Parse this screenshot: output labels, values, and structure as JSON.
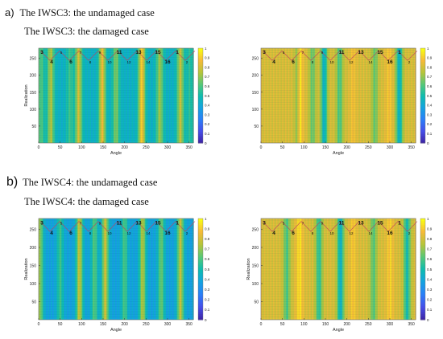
{
  "headings": {
    "a_tag": "a)",
    "a_line1": "The IWSC3: the undamaged case",
    "a_line2": "The IWSC3: the damaged case",
    "b_tag": "b)",
    "b_line1": "The IWSC4: the undamaged case",
    "b_line2": "The IWSC4: the damaged case"
  },
  "chart_data": [
    {
      "type": "heatmap",
      "panel": "a-left",
      "xlabel": "Angle",
      "ylabel": "Realization",
      "xlim": [
        0,
        360
      ],
      "ylim": [
        0,
        280
      ],
      "xticks": [
        0,
        50,
        100,
        150,
        200,
        250,
        300,
        350
      ],
      "yticks": [
        50,
        100,
        150,
        200,
        250
      ],
      "colorbar_ticks": [
        0,
        0.1,
        0.2,
        0.3,
        0.4,
        0.5,
        0.6,
        0.7,
        0.8,
        0.9,
        1
      ],
      "colormap": "parula",
      "base_value": 0.45,
      "bands": [
        {
          "angle": 5,
          "value": 0.62
        },
        {
          "angle": 28,
          "value": 0.75
        },
        {
          "angle": 73,
          "value": 0.58
        },
        {
          "angle": 93,
          "value": 0.8
        },
        {
          "angle": 148,
          "value": 0.85
        },
        {
          "angle": 180,
          "value": 0.68
        },
        {
          "angle": 240,
          "value": 0.9
        },
        {
          "angle": 282,
          "value": 0.72
        },
        {
          "angle": 330,
          "value": 0.78
        },
        {
          "angle": 352,
          "value": 0.55
        }
      ],
      "annotations_top": [
        "3",
        "5",
        "7",
        "9",
        "11",
        "13",
        "15",
        "1"
      ],
      "annotations_bottom": [
        "4",
        "6",
        "8",
        "10",
        "12",
        "14",
        "16",
        "2"
      ]
    },
    {
      "type": "heatmap",
      "panel": "a-right",
      "xlabel": "Angle",
      "ylabel": "",
      "xlim": [
        0,
        360
      ],
      "ylim": [
        0,
        280
      ],
      "xticks": [
        0,
        50,
        100,
        150,
        200,
        250,
        300,
        350
      ],
      "yticks": [
        50,
        100,
        150,
        200,
        250
      ],
      "colorbar_ticks": [
        0,
        0.1,
        0.2,
        0.3,
        0.4,
        0.5,
        0.6,
        0.7,
        0.8,
        0.9,
        1
      ],
      "colormap": "parula",
      "base_value": 0.82,
      "bands": [
        {
          "angle": 88,
          "value": 0.55
        },
        {
          "angle": 92,
          "value": 0.95
        },
        {
          "angle": 120,
          "value": 0.65
        },
        {
          "angle": 147,
          "value": 0.45
        },
        {
          "angle": 183,
          "value": 0.6
        },
        {
          "angle": 215,
          "value": 0.88
        },
        {
          "angle": 265,
          "value": 0.65
        },
        {
          "angle": 298,
          "value": 0.9
        },
        {
          "angle": 322,
          "value": 0.45
        }
      ],
      "annotations_top": [
        "3",
        "5",
        "7",
        "9",
        "11",
        "13",
        "15",
        "1"
      ],
      "annotations_bottom": [
        "4",
        "6",
        "8",
        "10",
        "12",
        "14",
        "16",
        "2"
      ]
    },
    {
      "type": "heatmap",
      "panel": "b-left",
      "xlabel": "Angle",
      "ylabel": "Realization",
      "xlim": [
        0,
        360
      ],
      "ylim": [
        0,
        280
      ],
      "xticks": [
        0,
        50,
        100,
        150,
        200,
        250,
        300,
        350
      ],
      "yticks": [
        50,
        100,
        150,
        200,
        250
      ],
      "colorbar_ticks": [
        0,
        0.1,
        0.2,
        0.3,
        0.4,
        0.5,
        0.6,
        0.7,
        0.8,
        0.9,
        1
      ],
      "colormap": "parula",
      "base_value": 0.38,
      "bands": [
        {
          "angle": 3,
          "value": 0.7
        },
        {
          "angle": 50,
          "value": 0.58
        },
        {
          "angle": 95,
          "value": 0.78
        },
        {
          "angle": 130,
          "value": 0.62
        },
        {
          "angle": 155,
          "value": 0.8
        },
        {
          "angle": 200,
          "value": 0.6
        },
        {
          "angle": 242,
          "value": 0.75
        },
        {
          "angle": 285,
          "value": 0.65
        },
        {
          "angle": 330,
          "value": 0.78
        }
      ],
      "annotations_top": [
        "3",
        "5",
        "7",
        "9",
        "11",
        "13",
        "15",
        "1"
      ],
      "annotations_bottom": [
        "4",
        "6",
        "8",
        "10",
        "12",
        "14",
        "16",
        "2"
      ]
    },
    {
      "type": "heatmap",
      "panel": "b-right",
      "xlabel": "Angle",
      "ylabel": "Realization",
      "xlim": [
        0,
        360
      ],
      "ylim": [
        0,
        280
      ],
      "xticks": [
        0,
        50,
        100,
        150,
        200,
        250,
        300,
        350
      ],
      "yticks": [
        50,
        100,
        150,
        200,
        250
      ],
      "colorbar_ticks": [
        0,
        0.1,
        0.2,
        0.3,
        0.4,
        0.5,
        0.6,
        0.7,
        0.8,
        0.9,
        1
      ],
      "colormap": "parula",
      "base_value": 0.82,
      "bands": [
        {
          "angle": 60,
          "value": 0.6
        },
        {
          "angle": 90,
          "value": 0.95
        },
        {
          "angle": 135,
          "value": 0.55
        },
        {
          "angle": 185,
          "value": 0.45
        },
        {
          "angle": 215,
          "value": 0.9
        },
        {
          "angle": 262,
          "value": 0.62
        },
        {
          "angle": 300,
          "value": 0.92
        },
        {
          "angle": 340,
          "value": 0.5
        }
      ],
      "annotations_top": [
        "3",
        "5",
        "7",
        "9",
        "11",
        "13",
        "15",
        "1"
      ],
      "annotations_bottom": [
        "4",
        "6",
        "8",
        "10",
        "12",
        "14",
        "16",
        "2"
      ]
    }
  ]
}
